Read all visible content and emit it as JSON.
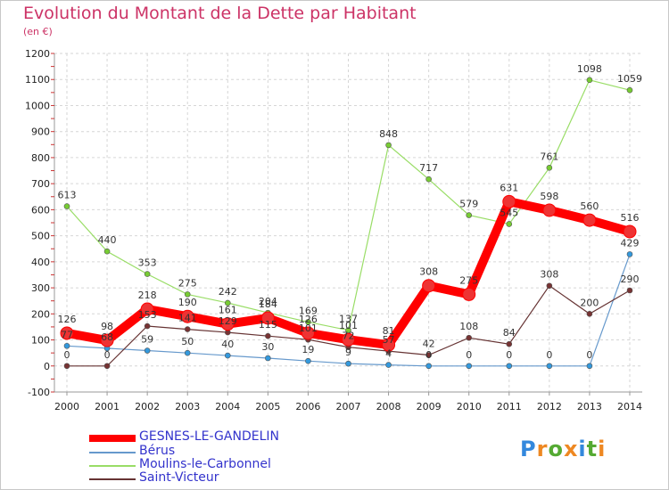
{
  "header": {
    "title": "Evolution du Montant de la Dette par Habitant",
    "unit": "(en €)"
  },
  "logo": {
    "text": "Proxiti",
    "colors": [
      "#3388dd",
      "#ee8822",
      "#55aa33",
      "#ee8822",
      "#3388dd",
      "#55aa33",
      "#ee8822"
    ]
  },
  "chart_data": {
    "type": "line",
    "x": [
      "2000",
      "2001",
      "2002",
      "2003",
      "2004",
      "2005",
      "2006",
      "2007",
      "2008",
      "2009",
      "2010",
      "2011",
      "2012",
      "2013",
      "2014"
    ],
    "ylim": [
      -100,
      1200
    ],
    "yticks": [
      -100,
      0,
      100,
      200,
      300,
      400,
      500,
      600,
      700,
      800,
      900,
      1000,
      1100,
      1200
    ],
    "grid": true,
    "legend_position": "bottom-left",
    "series": [
      {
        "name": "GESNES-LE-GANDELIN",
        "color": "#ff0000",
        "marker_color": "#ee3333",
        "values": [
          126,
          98,
          218,
          190,
          161,
          184,
          126,
          101,
          81,
          308,
          275,
          631,
          598,
          560,
          516
        ]
      },
      {
        "name": "Bérus",
        "color": "#6699cc",
        "marker_color": "#3399dd",
        "values": [
          77,
          68,
          59,
          50,
          40,
          30,
          19,
          9,
          4,
          0,
          0,
          0,
          0,
          0,
          429
        ]
      },
      {
        "name": "Moulins-le-Carbonnel",
        "color": "#99dd66",
        "marker_color": "#77cc33",
        "values": [
          613,
          440,
          353,
          275,
          242,
          204,
          169,
          137,
          848,
          717,
          579,
          545,
          761,
          1098,
          1059
        ]
      },
      {
        "name": "Saint-Victeur",
        "color": "#663333",
        "marker_color": "#773333",
        "values": [
          0,
          0,
          153,
          141,
          129,
          115,
          101,
          72,
          57,
          42,
          108,
          84,
          308,
          200,
          290
        ]
      }
    ]
  }
}
